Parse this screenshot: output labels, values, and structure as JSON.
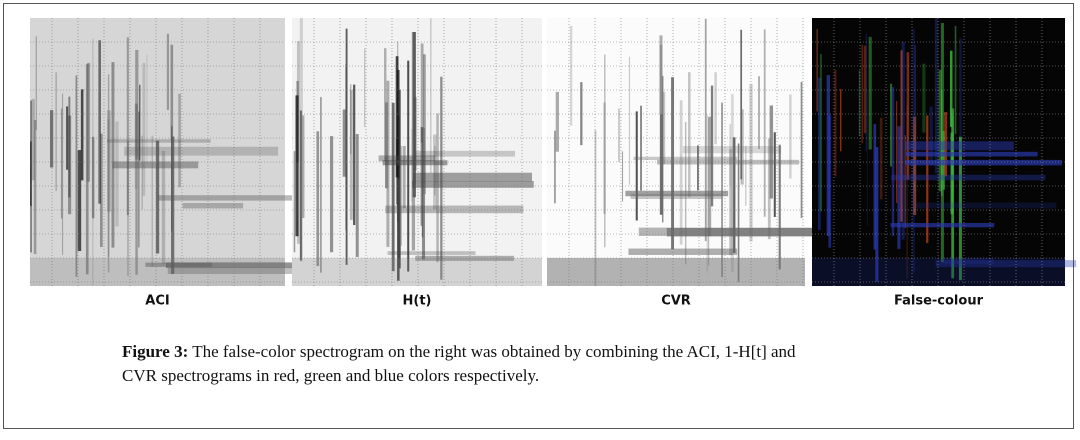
{
  "figure": {
    "panels": [
      {
        "label": "ACI"
      },
      {
        "label": "H(t)"
      },
      {
        "label": "CVR"
      },
      {
        "label": "False-colour"
      }
    ],
    "caption": {
      "label": "Figure 3:",
      "text": "The false-color spectrogram on the right was obtained by combining the ACI, 1-H[t] and CVR spectrograms in red, green and blue colors respectively."
    }
  }
}
